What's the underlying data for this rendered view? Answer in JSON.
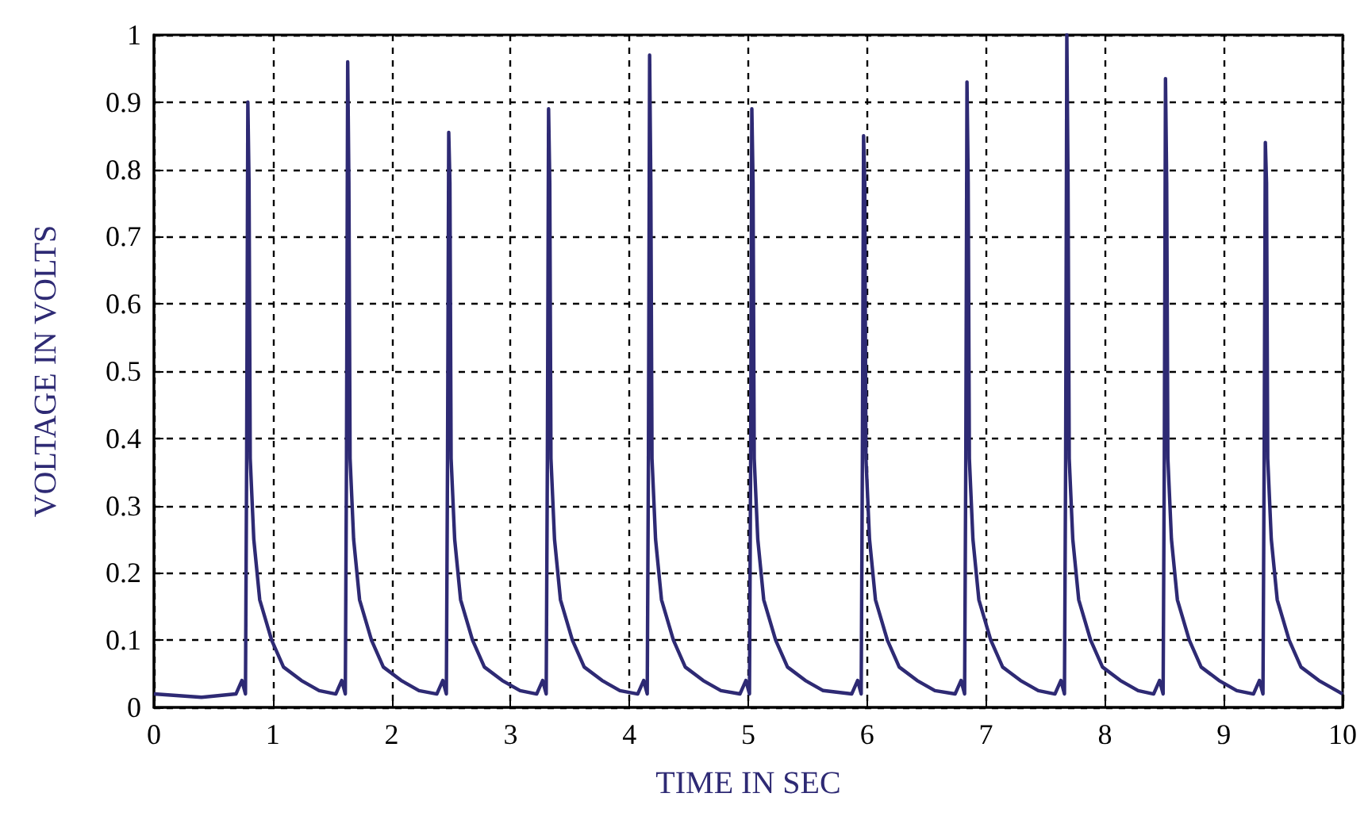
{
  "chart_data": {
    "type": "line",
    "xlabel": "TIME IN SEC",
    "ylabel": "VOLTAGE IN VOLTS",
    "xlim": [
      0,
      10
    ],
    "xticks": [
      0,
      1,
      2,
      3,
      4,
      5,
      6,
      7,
      8,
      9,
      10
    ],
    "ylim": [
      0,
      1
    ],
    "yticks": [
      0,
      0.1,
      0.2,
      0.3,
      0.4,
      0.5,
      0.6,
      0.7,
      0.8,
      0.9,
      1
    ],
    "grid": true,
    "series": [
      {
        "color": "#2e2a74",
        "x": [
          0,
          0.4,
          0.69,
          0.74,
          0.77,
          0.78,
          0.79,
          0.8,
          0.81,
          0.84,
          0.89,
          0.99,
          1.09,
          1.24,
          1.39,
          1.53,
          1.58,
          1.61,
          1.62,
          1.63,
          1.64,
          1.65,
          1.68,
          1.73,
          1.83,
          1.93,
          2.08,
          2.23,
          2.38,
          2.43,
          2.46,
          2.47,
          2.48,
          2.49,
          2.5,
          2.53,
          2.58,
          2.68,
          2.78,
          2.93,
          3.08,
          3.22,
          3.27,
          3.3,
          3.31,
          3.32,
          3.33,
          3.34,
          3.37,
          3.42,
          3.52,
          3.62,
          3.77,
          3.92,
          4.07,
          4.12,
          4.15,
          4.16,
          4.17,
          4.18,
          4.19,
          4.22,
          4.27,
          4.37,
          4.47,
          4.62,
          4.77,
          4.93,
          4.98,
          5.01,
          5.02,
          5.03,
          5.04,
          5.05,
          5.08,
          5.13,
          5.23,
          5.33,
          5.48,
          5.63,
          5.87,
          5.92,
          5.95,
          5.96,
          5.97,
          5.98,
          5.99,
          6.02,
          6.07,
          6.17,
          6.27,
          6.42,
          6.57,
          6.74,
          6.79,
          6.82,
          6.83,
          6.84,
          6.85,
          6.86,
          6.89,
          6.94,
          7.04,
          7.14,
          7.29,
          7.44,
          7.58,
          7.63,
          7.66,
          7.67,
          7.68,
          7.69,
          7.7,
          7.73,
          7.78,
          7.88,
          7.98,
          8.13,
          8.28,
          8.41,
          8.46,
          8.49,
          8.5,
          8.51,
          8.52,
          8.53,
          8.56,
          8.61,
          8.71,
          8.81,
          8.96,
          9.11,
          9.25,
          9.3,
          9.33,
          9.34,
          9.35,
          9.36,
          9.37,
          9.4,
          9.45,
          9.55,
          9.65,
          9.8,
          9.95,
          10
        ],
        "values": [
          0.02,
          0.015,
          0.02,
          0.04,
          0.02,
          0.37,
          0.9,
          0.78,
          0.37,
          0.25,
          0.16,
          0.1,
          0.06,
          0.04,
          0.025,
          0.02,
          0.04,
          0.02,
          0.37,
          0.96,
          0.78,
          0.37,
          0.25,
          0.16,
          0.1,
          0.06,
          0.04,
          0.025,
          0.02,
          0.04,
          0.02,
          0.37,
          0.855,
          0.78,
          0.37,
          0.25,
          0.16,
          0.1,
          0.06,
          0.04,
          0.025,
          0.02,
          0.04,
          0.02,
          0.37,
          0.89,
          0.78,
          0.37,
          0.25,
          0.16,
          0.1,
          0.06,
          0.04,
          0.025,
          0.02,
          0.04,
          0.02,
          0.37,
          0.97,
          0.78,
          0.37,
          0.25,
          0.16,
          0.1,
          0.06,
          0.04,
          0.025,
          0.02,
          0.04,
          0.02,
          0.37,
          0.89,
          0.78,
          0.37,
          0.25,
          0.16,
          0.1,
          0.06,
          0.04,
          0.025,
          0.02,
          0.04,
          0.02,
          0.37,
          0.85,
          0.78,
          0.37,
          0.25,
          0.16,
          0.1,
          0.06,
          0.04,
          0.025,
          0.02,
          0.04,
          0.02,
          0.37,
          0.93,
          0.78,
          0.37,
          0.25,
          0.16,
          0.1,
          0.06,
          0.04,
          0.025,
          0.02,
          0.04,
          0.02,
          0.37,
          1.0,
          0.78,
          0.37,
          0.25,
          0.16,
          0.1,
          0.06,
          0.04,
          0.025,
          0.02,
          0.04,
          0.02,
          0.37,
          0.935,
          0.78,
          0.37,
          0.25,
          0.16,
          0.1,
          0.06,
          0.04,
          0.025,
          0.02,
          0.04,
          0.02,
          0.37,
          0.84,
          0.78,
          0.37,
          0.25,
          0.16,
          0.1,
          0.06,
          0.04,
          0.025,
          0.02
        ]
      }
    ]
  }
}
